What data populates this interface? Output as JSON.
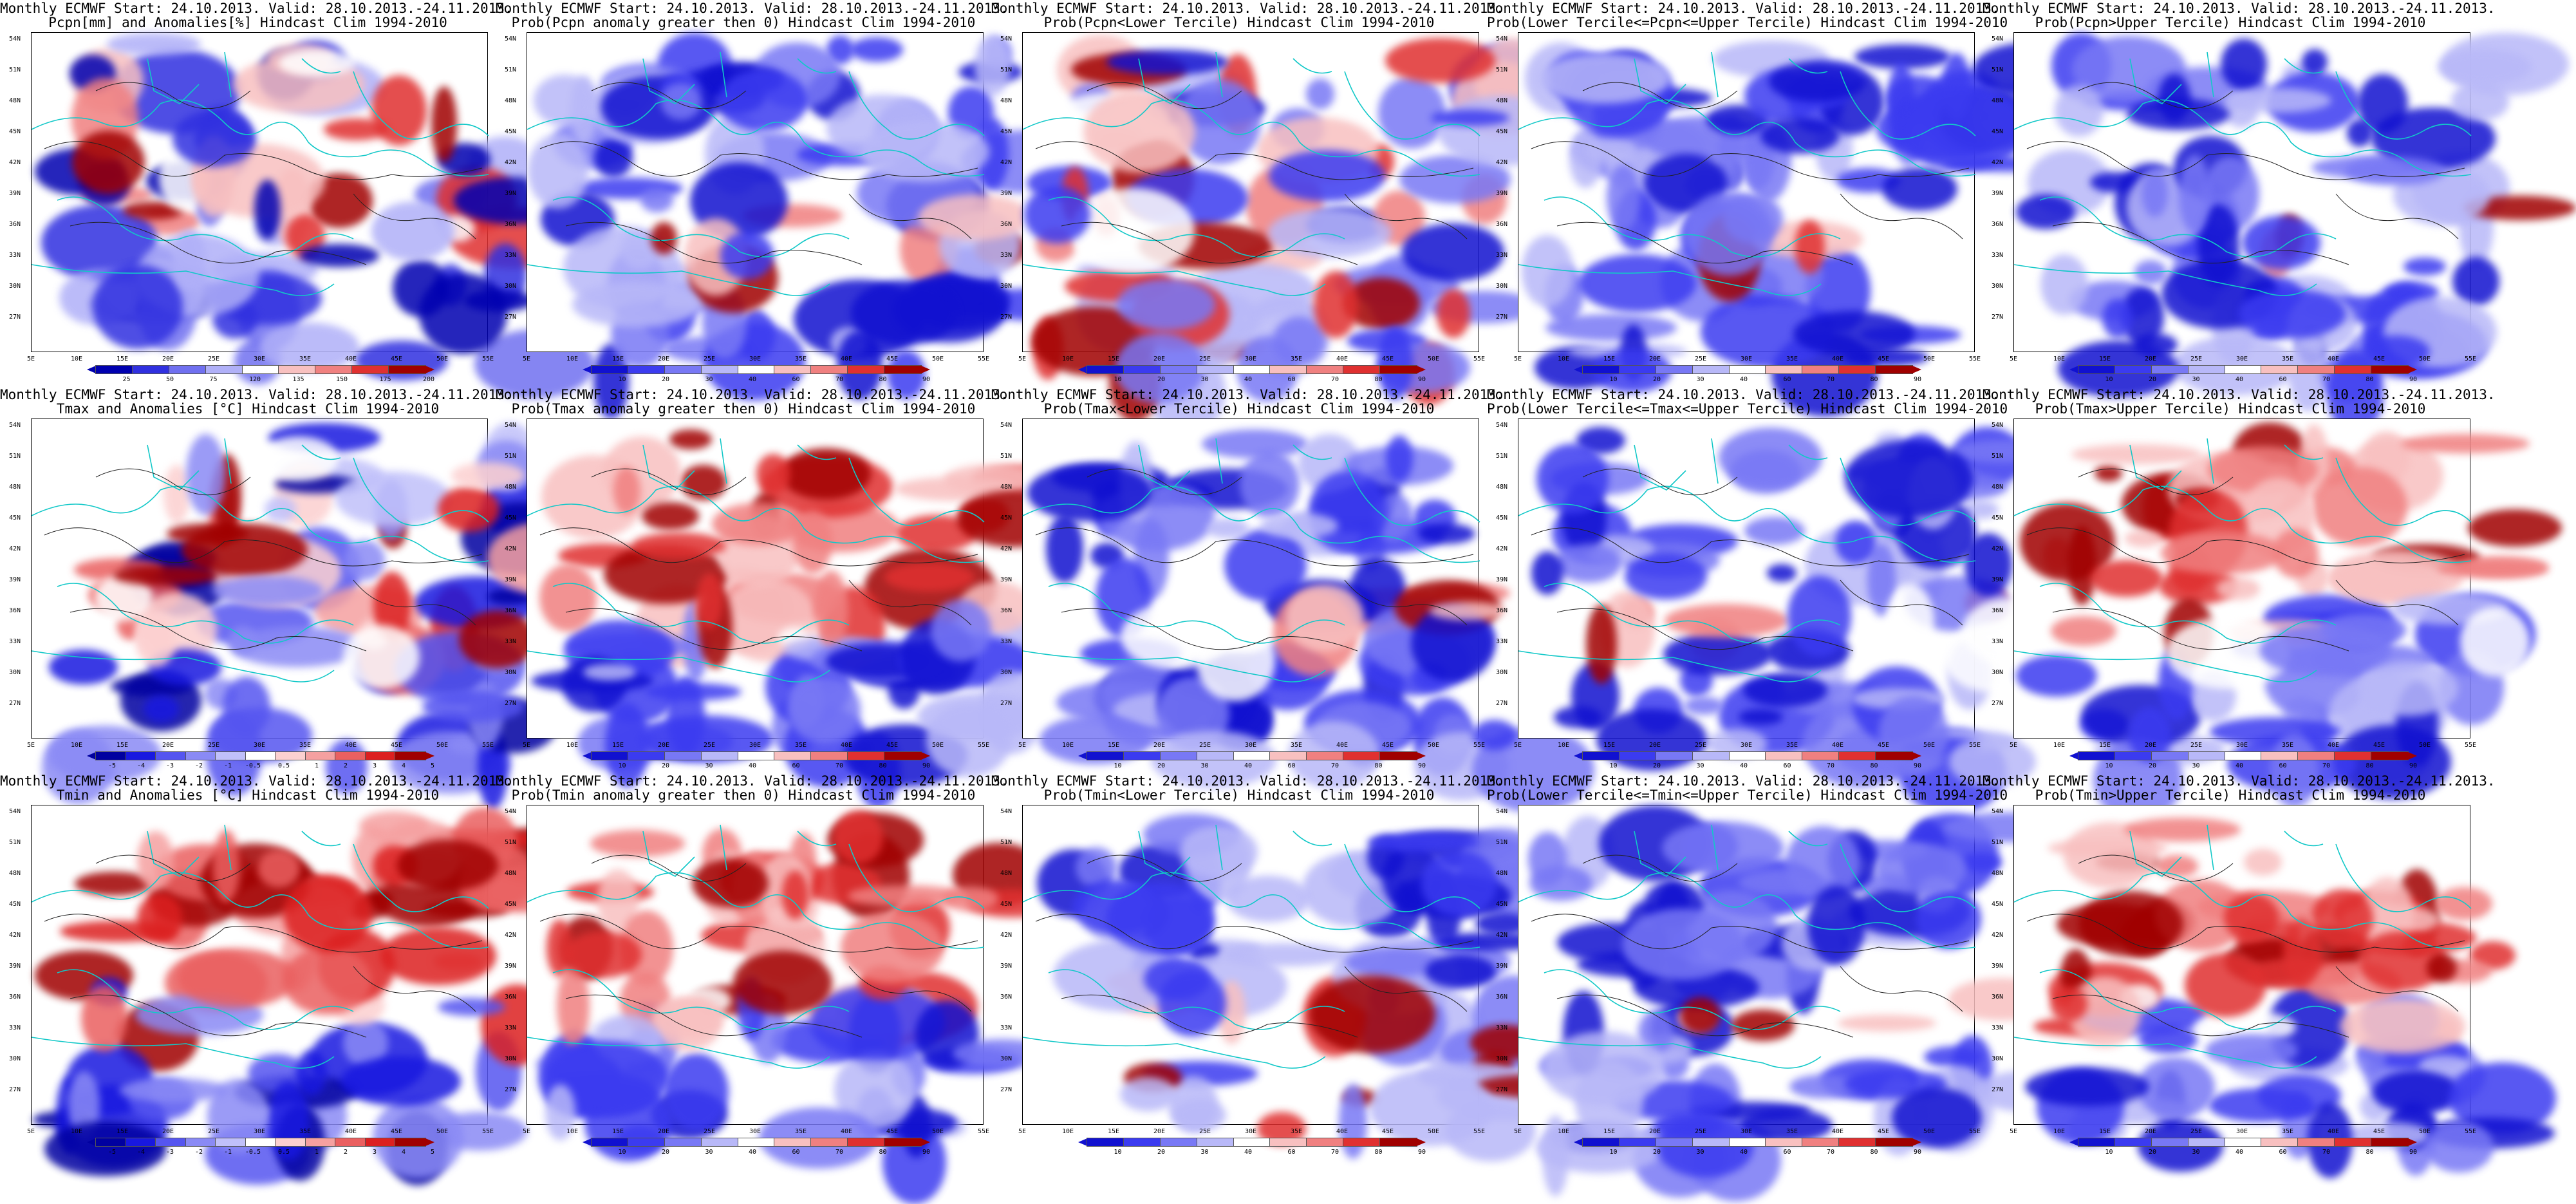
{
  "panels": [
    {
      "t1": "Monthly ECMWF Start: 24.10.2013. Valid: 28.10.2013.-24.11.2013.",
      "t2": "Pcpn[mm] and Anomalies[%] Hindcast Clim 1994-2010",
      "scheme": "anom_pcpn",
      "labels": [
        "25",
        "50",
        "75",
        "120",
        "135",
        "150",
        "175",
        "200"
      ]
    },
    {
      "t1": "Monthly ECMWF Start: 24.10.2013. Valid: 28.10.2013.-24.11.2013.",
      "t2": "Prob(Pcpn anomaly greater then 0) Hindcast Clim 1994-2010",
      "scheme": "prob",
      "labels": [
        "10",
        "20",
        "30",
        "40",
        "60",
        "70",
        "80",
        "90"
      ]
    },
    {
      "t1": "Monthly ECMWF Start: 24.10.2013. Valid: 28.10.2013.-24.11.2013.",
      "t2": "Prob(Pcpn<Lower Tercile) Hindcast Clim 1994-2010",
      "scheme": "prob",
      "labels": [
        "10",
        "20",
        "30",
        "40",
        "60",
        "70",
        "80",
        "90"
      ]
    },
    {
      "t1": "Monthly ECMWF Start: 24.10.2013. Valid: 28.10.2013.-24.11.2013.",
      "t2": "Prob(Lower Tercile<=Pcpn<=Upper Tercile) Hindcast Clim 1994-2010",
      "scheme": "prob",
      "labels": [
        "10",
        "20",
        "30",
        "40",
        "60",
        "70",
        "80",
        "90"
      ]
    },
    {
      "t1": "Monthly ECMWF Start: 24.10.2013. Valid: 28.10.2013.-24.11.2013.",
      "t2": "Prob(Pcpn>Upper Tercile) Hindcast Clim 1994-2010",
      "scheme": "prob",
      "labels": [
        "10",
        "20",
        "30",
        "40",
        "60",
        "70",
        "80",
        "90"
      ]
    },
    {
      "t1": "Monthly ECMWF Start: 24.10.2013. Valid: 28.10.2013.-24.11.2013.",
      "t2": "Tmax and Anomalies [°C] Hindcast Clim 1994-2010",
      "scheme": "anom_temp",
      "labels": [
        "-5",
        "-4",
        "-3",
        "-2",
        "-1",
        "-0.5",
        "0.5",
        "1",
        "2",
        "3",
        "4",
        "5"
      ]
    },
    {
      "t1": "Monthly ECMWF Start: 24.10.2013. Valid: 28.10.2013.-24.11.2013.",
      "t2": "Prob(Tmax anomaly greater then 0) Hindcast Clim 1994-2010",
      "scheme": "prob",
      "labels": [
        "10",
        "20",
        "30",
        "40",
        "60",
        "70",
        "80",
        "90"
      ]
    },
    {
      "t1": "Monthly ECMWF Start: 24.10.2013. Valid: 28.10.2013.-24.11.2013.",
      "t2": "Prob(Tmax<Lower Tercile) Hindcast Clim 1994-2010",
      "scheme": "prob",
      "labels": [
        "10",
        "20",
        "30",
        "40",
        "60",
        "70",
        "80",
        "90"
      ]
    },
    {
      "t1": "Monthly ECMWF Start: 24.10.2013. Valid: 28.10.2013.-24.11.2013.",
      "t2": "Prob(Lower Tercile<=Tmax<=Upper Tercile) Hindcast Clim 1994-2010",
      "scheme": "prob",
      "labels": [
        "10",
        "20",
        "30",
        "40",
        "60",
        "70",
        "80",
        "90"
      ]
    },
    {
      "t1": "Monthly ECMWF Start: 24.10.2013. Valid: 28.10.2013.-24.11.2013.",
      "t2": "Prob(Tmax>Upper Tercile) Hindcast Clim 1994-2010",
      "scheme": "prob",
      "labels": [
        "10",
        "20",
        "30",
        "40",
        "60",
        "70",
        "80",
        "90"
      ]
    },
    {
      "t1": "Monthly ECMWF Start: 24.10.2013. Valid: 28.10.2013.-24.11.2013.",
      "t2": "Tmin and Anomalies [°C] Hindcast Clim 1994-2010",
      "scheme": "anom_temp",
      "labels": [
        "-5",
        "-4",
        "-3",
        "-2",
        "-1",
        "-0.5",
        "0.5",
        "1",
        "2",
        "3",
        "4",
        "5"
      ]
    },
    {
      "t1": "Monthly ECMWF Start: 24.10.2013. Valid: 28.10.2013.-24.11.2013.",
      "t2": "Prob(Tmin anomaly greater then 0) Hindcast Clim 1994-2010",
      "scheme": "prob",
      "labels": [
        "10",
        "20",
        "30",
        "40",
        "60",
        "70",
        "80",
        "90"
      ]
    },
    {
      "t1": "Monthly ECMWF Start: 24.10.2013. Valid: 28.10.2013.-24.11.2013.",
      "t2": "Prob(Tmin<Lower Tercile) Hindcast Clim 1994-2010",
      "scheme": "prob",
      "labels": [
        "10",
        "20",
        "30",
        "40",
        "60",
        "70",
        "80",
        "90"
      ]
    },
    {
      "t1": "Monthly ECMWF Start: 24.10.2013. Valid: 28.10.2013.-24.11.2013.",
      "t2": "Prob(Lower Tercile<=Tmin<=Upper Tercile) Hindcast Clim 1994-2010",
      "scheme": "prob",
      "labels": [
        "10",
        "20",
        "30",
        "40",
        "60",
        "70",
        "80",
        "90"
      ]
    },
    {
      "t1": "Monthly ECMWF Start: 24.10.2013. Valid: 28.10.2013.-24.11.2013.",
      "t2": "Prob(Tmin>Upper Tercile) Hindcast Clim 1994-2010",
      "scheme": "prob",
      "labels": [
        "10",
        "20",
        "30",
        "40",
        "60",
        "70",
        "80",
        "90"
      ]
    }
  ],
  "lat_labels": [
    "54N",
    "51N",
    "48N",
    "45N",
    "42N",
    "39N",
    "36N",
    "33N",
    "30N",
    "27N"
  ],
  "lon_labels": [
    "5E",
    "10E",
    "15E",
    "20E",
    "25E",
    "30E",
    "35E",
    "40E",
    "45E",
    "50E",
    "55E"
  ],
  "colors": {
    "prob": [
      "#1111d0",
      "#3b3bf0",
      "#7878f5",
      "#b8b8f8",
      "#ffffff",
      "#f8c0c0",
      "#f08080",
      "#e03030",
      "#a00000"
    ],
    "anom_temp": [
      "#0000a0",
      "#1818e0",
      "#5555f0",
      "#8a8af5",
      "#c0c0fa",
      "#ffffff",
      "#fcd0d0",
      "#f5a0a0",
      "#ea6060",
      "#dc2020",
      "#a00000"
    ],
    "anom_pcpn": [
      "#0000b0",
      "#3030e0",
      "#7070f0",
      "#b0b0f8",
      "#ffffff",
      "#f8c0c0",
      "#f08080",
      "#e03030",
      "#a00000"
    ]
  }
}
